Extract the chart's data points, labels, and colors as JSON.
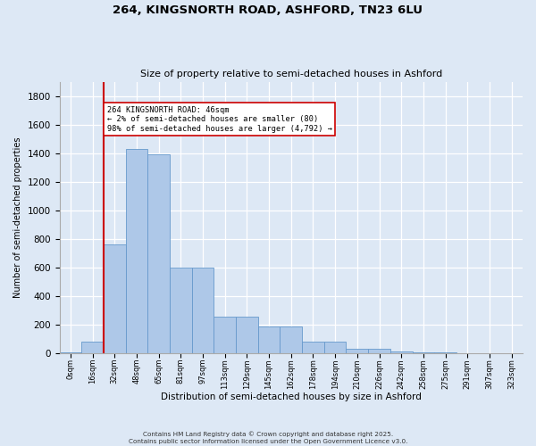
{
  "title_line1": "264, KINGSNORTH ROAD, ASHFORD, TN23 6LU",
  "title_line2": "Size of property relative to semi-detached houses in Ashford",
  "xlabel": "Distribution of semi-detached houses by size in Ashford",
  "ylabel": "Number of semi-detached properties",
  "footnote": "Contains HM Land Registry data © Crown copyright and database right 2025.\nContains public sector information licensed under the Open Government Licence v3.0.",
  "bin_labels": [
    "0sqm",
    "16sqm",
    "32sqm",
    "48sqm",
    "65sqm",
    "81sqm",
    "97sqm",
    "113sqm",
    "129sqm",
    "145sqm",
    "162sqm",
    "178sqm",
    "194sqm",
    "210sqm",
    "226sqm",
    "242sqm",
    "258sqm",
    "275sqm",
    "291sqm",
    "307sqm",
    "323sqm"
  ],
  "bar_values": [
    5,
    80,
    760,
    1430,
    1390,
    600,
    600,
    255,
    255,
    183,
    183,
    78,
    78,
    30,
    30,
    8,
    3,
    2,
    0,
    0,
    0
  ],
  "bar_color": "#aec8e8",
  "bar_edge_color": "#6699cc",
  "background_color": "#dde8f5",
  "grid_color": "#ffffff",
  "vline_position": 2.0,
  "vline_color": "#cc0000",
  "annotation_text": "264 KINGSNORTH ROAD: 46sqm\n← 2% of semi-detached houses are smaller (80)\n98% of semi-detached houses are larger (4,792) →",
  "annotation_box_facecolor": "#ffffff",
  "annotation_box_edgecolor": "#cc0000",
  "ylim": [
    0,
    1900
  ],
  "yticks": [
    0,
    200,
    400,
    600,
    800,
    1000,
    1200,
    1400,
    1600,
    1800
  ]
}
